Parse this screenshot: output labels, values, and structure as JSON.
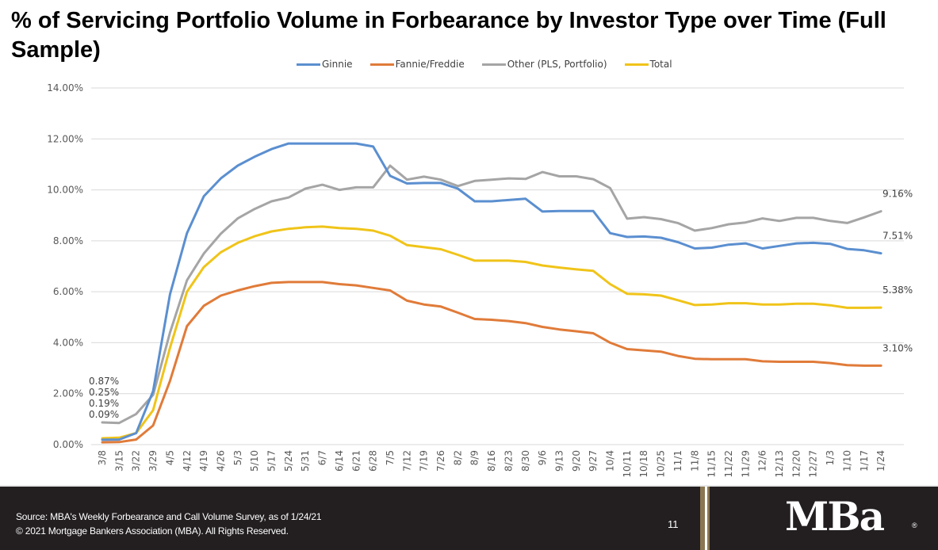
{
  "slide": {
    "title": "% of Servicing Portfolio Volume in Forbearance by Investor Type over Time (Full Sample)",
    "footer": {
      "source": "Source: MBA's Weekly Forbearance and Call Volume Survey, as of 1/24/21",
      "copyright": "© 2021 Mortgage Bankers Association (MBA). All Rights Reserved.",
      "page_number": "11",
      "logo": "MBa",
      "logo_registered": "®"
    }
  },
  "chart_data": {
    "type": "line",
    "title": "% of Servicing Portfolio Volume in Forbearance by Investor Type over Time (Full Sample)",
    "xlabel": "",
    "ylabel": "",
    "ylim": [
      0,
      14
    ],
    "y_unit": "%",
    "y_ticks": [
      "0.00%",
      "2.00%",
      "4.00%",
      "6.00%",
      "8.00%",
      "10.00%",
      "12.00%",
      "14.00%"
    ],
    "grid": true,
    "legend_position": "top",
    "categories": [
      "3/8",
      "3/15",
      "3/22",
      "3/29",
      "4/5",
      "4/12",
      "4/19",
      "4/26",
      "5/3",
      "5/10",
      "5/17",
      "5/24",
      "5/31",
      "6/7",
      "6/14",
      "6/21",
      "6/28",
      "7/5",
      "7/12",
      "7/19",
      "7/26",
      "8/2",
      "8/9",
      "8/16",
      "8/23",
      "8/30",
      "9/6",
      "9/13",
      "9/20",
      "9/27",
      "10/4",
      "10/11",
      "10/18",
      "10/25",
      "11/1",
      "11/8",
      "11/15",
      "11/22",
      "11/29",
      "12/6",
      "12/13",
      "12/20",
      "12/27",
      "1/3",
      "1/10",
      "1/17",
      "1/24"
    ],
    "series": [
      {
        "name": "Ginnie",
        "color": "#5b8fd0",
        "values": [
          0.19,
          0.2,
          0.45,
          2.1,
          5.9,
          8.3,
          9.75,
          10.45,
          10.95,
          11.3,
          11.6,
          11.82,
          11.82,
          11.82,
          11.82,
          11.82,
          11.7,
          10.55,
          10.25,
          10.27,
          10.27,
          10.05,
          9.55,
          9.55,
          9.6,
          9.65,
          9.15,
          9.17,
          9.17,
          9.17,
          8.3,
          8.15,
          8.17,
          8.12,
          7.95,
          7.7,
          7.73,
          7.85,
          7.9,
          7.7,
          7.8,
          7.9,
          7.92,
          7.88,
          7.68,
          7.63,
          7.51
        ]
      },
      {
        "name": "Fannie/Freddie",
        "color": "#e07b39",
        "values": [
          0.09,
          0.1,
          0.2,
          0.75,
          2.5,
          4.65,
          5.45,
          5.85,
          6.05,
          6.22,
          6.35,
          6.38,
          6.38,
          6.38,
          6.3,
          6.25,
          6.15,
          6.05,
          5.65,
          5.5,
          5.42,
          5.18,
          4.93,
          4.9,
          4.85,
          4.77,
          4.62,
          4.52,
          4.45,
          4.37,
          4.0,
          3.75,
          3.7,
          3.65,
          3.48,
          3.37,
          3.35,
          3.35,
          3.35,
          3.27,
          3.25,
          3.25,
          3.25,
          3.2,
          3.12,
          3.1,
          3.1
        ]
      },
      {
        "name": "Other (PLS, Portfolio)",
        "color": "#a5a5a5",
        "values": [
          0.87,
          0.85,
          1.2,
          1.95,
          4.4,
          6.45,
          7.5,
          8.28,
          8.88,
          9.25,
          9.55,
          9.7,
          10.05,
          10.2,
          10.0,
          10.1,
          10.1,
          10.95,
          10.4,
          10.52,
          10.4,
          10.15,
          10.35,
          10.4,
          10.45,
          10.43,
          10.7,
          10.53,
          10.53,
          10.42,
          10.07,
          8.87,
          8.93,
          8.85,
          8.7,
          8.4,
          8.5,
          8.65,
          8.72,
          8.88,
          8.78,
          8.9,
          8.9,
          8.78,
          8.7,
          8.92,
          9.16
        ]
      },
      {
        "name": "Total",
        "color": "#f0c419",
        "values": [
          0.25,
          0.27,
          0.45,
          1.35,
          3.8,
          6.0,
          6.97,
          7.55,
          7.92,
          8.18,
          8.37,
          8.47,
          8.53,
          8.56,
          8.5,
          8.47,
          8.4,
          8.2,
          7.83,
          7.75,
          7.67,
          7.45,
          7.22,
          7.22,
          7.22,
          7.17,
          7.03,
          6.95,
          6.88,
          6.82,
          6.3,
          5.92,
          5.9,
          5.85,
          5.67,
          5.48,
          5.5,
          5.55,
          5.55,
          5.5,
          5.5,
          5.53,
          5.53,
          5.47,
          5.37,
          5.37,
          5.38
        ]
      }
    ],
    "annotations": {
      "start_labels": [
        "0.87%",
        "0.25%",
        "0.19%",
        "0.09%"
      ],
      "end_labels": [
        {
          "series": "Other (PLS, Portfolio)",
          "text": "9.16%"
        },
        {
          "series": "Ginnie",
          "text": "7.51%"
        },
        {
          "series": "Total",
          "text": "5.38%"
        },
        {
          "series": "Fannie/Freddie",
          "text": "3.10%"
        }
      ]
    }
  }
}
